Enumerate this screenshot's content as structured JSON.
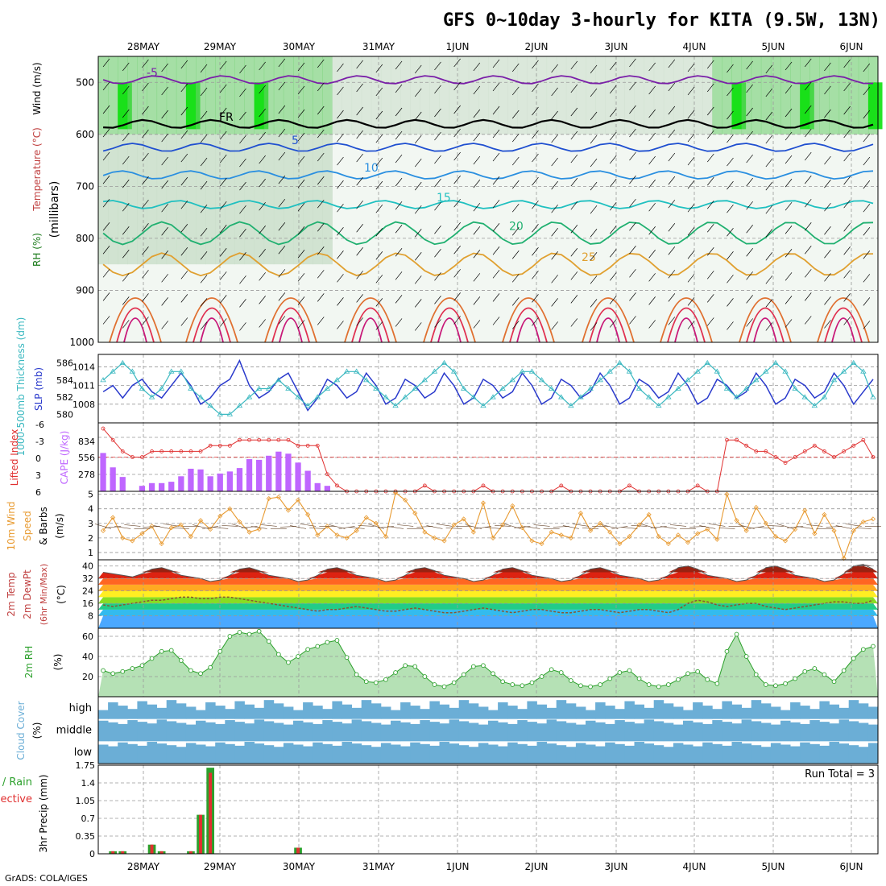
{
  "title": "GFS 0~10day 3-hourly for KITA (9.5W, 13N)",
  "footer": "GrADS: COLA/IGES",
  "run_total": "Run Total = 3",
  "colors": {
    "rh_green": "#00e000",
    "rh_mid": "#66cc66",
    "rh_light": "#c8ddc8",
    "cape": "#bf66ff",
    "lifted": "#e03030",
    "slp": "#2a3acc",
    "thick": "#3ab8c0",
    "wind10m": "#e89a30",
    "rh2m": "#2ca02c",
    "cloud": "#6baed6",
    "precip_total": "#2ca02c",
    "precip_conv": "#e03030"
  },
  "chart_data": [
    {
      "type": "heatmap",
      "panel": "upper-air cross-section",
      "ylabel": "(millibars)",
      "side_labels": [
        "RH (%)",
        "Temperature (°C)",
        "Wind (m/s)"
      ],
      "x_tick_labels": [
        "28MAY",
        "29MAY",
        "30MAY",
        "31MAY",
        "1JUN",
        "2JUN",
        "3JUN",
        "4JUN",
        "5JUN",
        "6JUN"
      ],
      "y_tick_labels": [
        "500",
        "600",
        "700",
        "800",
        "900",
        "1000"
      ],
      "ylim": [
        1000,
        450
      ],
      "isotherms": [
        {
          "label": "-5",
          "pressure": 495,
          "color": "#7a1fa8"
        },
        {
          "label": "FR",
          "pressure": 580,
          "color": "#000000"
        },
        {
          "label": "5",
          "pressure": 625,
          "color": "#1f4fd0"
        },
        {
          "label": "10",
          "pressure": 678,
          "color": "#2a8fe0"
        },
        {
          "label": "15",
          "pressure": 735,
          "color": "#1fc0c0"
        },
        {
          "label": "20",
          "pressure": 790,
          "color": "#20b070"
        },
        {
          "label": "25",
          "pressure": 850,
          "color": "#e0a030"
        }
      ]
    },
    {
      "type": "line",
      "panel": "thickness / slp",
      "ylabel_left": "1000-500mb Thickness (dm)",
      "ylabel_right": "SLP (mb)",
      "y_ticks_left": [
        "586",
        "584",
        "582",
        "580"
      ],
      "y_ticks_right": [
        "1014",
        "1011",
        "1008"
      ],
      "series": [
        {
          "name": "SLP (mb)",
          "values": [
            1010,
            1011,
            1009,
            1011,
            1012,
            1010,
            1009,
            1011,
            1013,
            1011,
            1008,
            1009,
            1011,
            1012,
            1015,
            1011,
            1009,
            1010,
            1012,
            1013,
            1010,
            1007,
            1009,
            1012,
            1011,
            1009,
            1010,
            1013,
            1011,
            1008,
            1009,
            1012,
            1011,
            1009,
            1010,
            1013,
            1011,
            1008,
            1009,
            1012,
            1011,
            1009,
            1010,
            1013,
            1011,
            1008,
            1009,
            1012,
            1011,
            1009,
            1010,
            1013,
            1011,
            1008,
            1009,
            1012,
            1011,
            1009,
            1010,
            1013,
            1011,
            1008,
            1009,
            1012,
            1011,
            1009,
            1010,
            1013,
            1011,
            1008,
            1009,
            1012,
            1011,
            1009,
            1010,
            1013,
            1011,
            1008,
            1010,
            1012
          ]
        },
        {
          "name": "Thickness (dm)",
          "values": [
            584,
            585,
            586,
            585,
            583,
            582,
            583,
            585,
            585,
            583,
            582,
            581,
            580,
            580,
            581,
            582,
            583,
            583,
            584,
            583,
            582,
            581,
            582,
            583,
            584,
            585,
            585,
            584,
            583,
            582,
            581,
            582,
            583,
            584,
            585,
            586,
            585,
            583,
            582,
            581,
            582,
            583,
            584,
            585,
            585,
            584,
            583,
            582,
            581,
            582,
            583,
            584,
            585,
            586,
            585,
            583,
            582,
            581,
            582,
            583,
            584,
            585,
            586,
            585,
            583,
            582,
            583,
            584,
            585,
            586,
            585,
            583,
            582,
            581,
            582,
            584,
            585,
            586,
            585,
            582
          ]
        }
      ]
    },
    {
      "type": "bar",
      "panel": "lifted index / cape",
      "ylabel_left": "Lifted Index",
      "ylabel_right": "CAPE (J/kg)",
      "y_ticks_left": [
        "-6",
        "-3",
        "0",
        "3",
        "6"
      ],
      "y_ticks_right": [
        "834",
        "556",
        "278"
      ],
      "cape": [
        560,
        350,
        210,
        0,
        80,
        120,
        120,
        140,
        220,
        330,
        320,
        220,
        260,
        290,
        340,
        470,
        460,
        520,
        580,
        550,
        420,
        300,
        120,
        80,
        0,
        0,
        0,
        0,
        0,
        0,
        0,
        0,
        0,
        0,
        0,
        0,
        0,
        0,
        0,
        0,
        0,
        0,
        0,
        0,
        0,
        0,
        0,
        0,
        0,
        0,
        0,
        0,
        0,
        0,
        0,
        0,
        0,
        0,
        0,
        0,
        0,
        0,
        0,
        0,
        0,
        0,
        0,
        0,
        0,
        0,
        0,
        0,
        0,
        0,
        0,
        0,
        0,
        0,
        0,
        0
      ],
      "lifted_index": [
        -5,
        -3,
        -1,
        0,
        0,
        -1,
        -1,
        -1,
        -1,
        -1,
        -1,
        -2,
        -2,
        -2,
        -3,
        -3,
        -3,
        -3,
        -3,
        -3,
        -2,
        -2,
        -2,
        3,
        5,
        6,
        6,
        6,
        6,
        6,
        6,
        6,
        6,
        5,
        6,
        6,
        6,
        6,
        6,
        5,
        6,
        6,
        6,
        6,
        6,
        6,
        6,
        5,
        6,
        6,
        6,
        6,
        6,
        6,
        5,
        6,
        6,
        6,
        6,
        6,
        6,
        5,
        6,
        6,
        -3,
        -3,
        -2,
        -1,
        -1,
        0,
        1,
        0,
        -1,
        -2,
        -1,
        0,
        -1,
        -2,
        -3,
        0
      ]
    },
    {
      "type": "line",
      "panel": "10m wind",
      "ylabel": "10m Wind Speed (m/s) & Barbs",
      "y_ticks": [
        "5",
        "4",
        "3",
        "2",
        "1"
      ],
      "ylim": [
        0.5,
        5.2
      ],
      "series": [
        {
          "name": "10m Wind Speed",
          "values": [
            2.5,
            3.4,
            2.0,
            1.8,
            2.3,
            2.8,
            1.6,
            2.7,
            2.9,
            2.1,
            3.2,
            2.6,
            3.5,
            4.0,
            3.1,
            2.4,
            2.6,
            4.7,
            4.8,
            3.9,
            4.6,
            3.6,
            2.2,
            2.8,
            2.2,
            2.0,
            2.5,
            3.4,
            3.0,
            2.1,
            5.1,
            4.6,
            3.7,
            2.4,
            2.0,
            1.8,
            2.9,
            3.3,
            2.4,
            4.4,
            2.0,
            2.9,
            4.2,
            2.7,
            1.8,
            1.6,
            2.4,
            2.2,
            2.0,
            3.7,
            2.5,
            3.0,
            2.4,
            1.6,
            2.1,
            2.9,
            3.6,
            2.1,
            1.6,
            2.2,
            1.7,
            2.3,
            2.6,
            1.9,
            5.0,
            3.2,
            2.5,
            4.1,
            3.0,
            2.1,
            1.8,
            2.6,
            3.9,
            2.3,
            3.6,
            2.5,
            0.6,
            2.5,
            3.1,
            3.3
          ]
        }
      ]
    },
    {
      "type": "area",
      "panel": "2m temp / dewpoint",
      "ylabel": "2m Temp 2m DewPt (6hr Min/Max) (°C)",
      "y_ticks": [
        "40",
        "32",
        "24",
        "16",
        "8"
      ],
      "ylim": [
        0,
        44
      ],
      "series": [
        {
          "name": "2m Temp",
          "values": [
            36,
            35,
            34,
            33,
            35,
            38,
            39,
            37,
            34,
            33,
            32,
            30,
            31,
            34,
            38,
            39,
            37,
            34,
            33,
            32,
            30,
            31,
            34,
            38,
            39,
            37,
            34,
            33,
            32,
            30,
            31,
            34,
            38,
            39,
            37,
            34,
            33,
            32,
            30,
            31,
            34,
            38,
            39,
            37,
            34,
            33,
            32,
            30,
            31,
            34,
            38,
            39,
            37,
            34,
            33,
            32,
            30,
            31,
            34,
            39,
            40,
            38,
            34,
            33,
            32,
            30,
            31,
            34,
            39,
            40,
            38,
            34,
            33,
            32,
            30,
            31,
            35,
            40,
            41,
            38
          ]
        },
        {
          "name": "2m DewPt",
          "values": [
            15,
            14,
            15,
            16,
            17,
            18,
            18,
            19,
            20,
            20,
            19,
            19,
            20,
            20,
            19,
            18,
            17,
            16,
            15,
            14,
            13,
            12,
            11,
            12,
            12,
            13,
            14,
            13,
            12,
            11,
            11,
            12,
            13,
            12,
            11,
            10,
            10,
            11,
            12,
            13,
            12,
            11,
            10,
            11,
            12,
            12,
            11,
            10,
            10,
            11,
            12,
            12,
            11,
            10,
            11,
            12,
            12,
            11,
            10,
            12,
            16,
            18,
            17,
            15,
            14,
            15,
            16,
            16,
            14,
            13,
            12,
            13,
            14,
            15,
            16,
            17,
            17,
            16,
            16,
            18
          ]
        }
      ]
    },
    {
      "type": "area",
      "panel": "2m rh",
      "ylabel": "2m RH (%)",
      "y_ticks": [
        "60",
        "40",
        "20"
      ],
      "ylim": [
        0,
        68
      ],
      "series": [
        {
          "name": "2m RH",
          "values": [
            26,
            23,
            25,
            28,
            31,
            38,
            45,
            46,
            36,
            26,
            23,
            29,
            45,
            60,
            64,
            62,
            65,
            55,
            42,
            34,
            40,
            47,
            50,
            54,
            56,
            39,
            22,
            15,
            14,
            17,
            24,
            31,
            30,
            20,
            12,
            10,
            14,
            22,
            30,
            31,
            23,
            15,
            12,
            11,
            14,
            20,
            27,
            24,
            16,
            11,
            10,
            12,
            18,
            24,
            26,
            18,
            12,
            10,
            12,
            17,
            23,
            25,
            17,
            13,
            45,
            62,
            40,
            22,
            12,
            11,
            13,
            18,
            25,
            28,
            22,
            15,
            26,
            38,
            47,
            50
          ]
        }
      ]
    },
    {
      "type": "heatmap",
      "panel": "cloud cover",
      "ylabel": "Cloud Cover (%)",
      "row_labels": [
        "high",
        "middle",
        "low"
      ]
    },
    {
      "type": "bar",
      "panel": "3hr precip",
      "ylabel": "3hr Precip (mm)",
      "side_labels": [
        "Total / Rain",
        "Convective"
      ],
      "y_ticks": [
        "1.75",
        "1.4",
        "1.05",
        "0.7",
        "0.35",
        "0"
      ],
      "ylim": [
        0,
        1.75
      ],
      "total": [
        0,
        0.05,
        0.05,
        0,
        0,
        0.18,
        0.05,
        0,
        0,
        0.05,
        0.77,
        1.7,
        0,
        0,
        0,
        0,
        0,
        0,
        0,
        0,
        0.12,
        0,
        0,
        0,
        0,
        0,
        0,
        0,
        0,
        0,
        0,
        0,
        0,
        0,
        0,
        0,
        0,
        0,
        0,
        0,
        0,
        0,
        0,
        0,
        0,
        0,
        0,
        0,
        0,
        0,
        0,
        0,
        0,
        0,
        0,
        0,
        0,
        0,
        0,
        0,
        0,
        0,
        0,
        0,
        0,
        0,
        0,
        0,
        0,
        0,
        0,
        0,
        0,
        0,
        0,
        0,
        0,
        0,
        0,
        0
      ],
      "convective": [
        0,
        0.05,
        0.05,
        0,
        0,
        0.18,
        0.05,
        0,
        0,
        0.05,
        0.77,
        1.6,
        0,
        0,
        0,
        0,
        0,
        0,
        0,
        0,
        0.12,
        0,
        0,
        0,
        0,
        0,
        0,
        0,
        0,
        0,
        0,
        0,
        0,
        0,
        0,
        0,
        0,
        0,
        0,
        0,
        0,
        0,
        0,
        0,
        0,
        0,
        0,
        0,
        0,
        0,
        0,
        0,
        0,
        0,
        0,
        0,
        0,
        0,
        0,
        0,
        0,
        0,
        0,
        0,
        0,
        0,
        0,
        0,
        0,
        0,
        0,
        0,
        0,
        0,
        0,
        0,
        0,
        0,
        0,
        0
      ]
    }
  ]
}
